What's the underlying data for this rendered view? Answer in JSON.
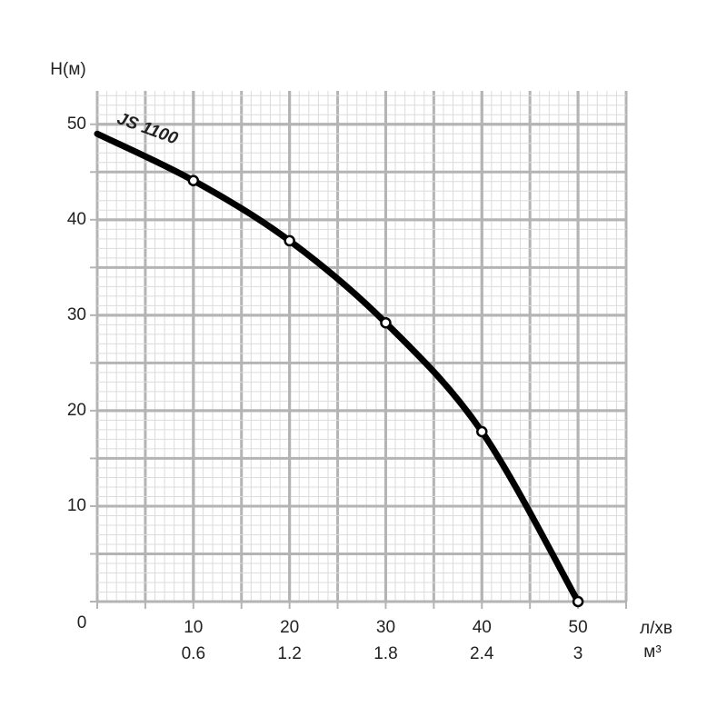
{
  "chart_data": {
    "type": "line",
    "ylabel": "H(м)",
    "xlabel": "л/хв",
    "x2label": "м³",
    "x": [
      0,
      10,
      20,
      30,
      40,
      50
    ],
    "series": [
      {
        "name": "JS 1100",
        "color": "#000000",
        "values": [
          49,
          44.1,
          37.8,
          29.2,
          17.8,
          0
        ]
      }
    ],
    "xlim": [
      0,
      55
    ],
    "xticks": [
      10,
      20,
      30,
      40,
      50
    ],
    "x2lim": [
      0,
      3.3
    ],
    "x2ticks": [
      0.6,
      1.2,
      1.8,
      2.4,
      3
    ],
    "ylim": [
      0,
      53.5
    ],
    "yticks": [
      0,
      10,
      20,
      30,
      40,
      50
    ],
    "grid": true
  }
}
